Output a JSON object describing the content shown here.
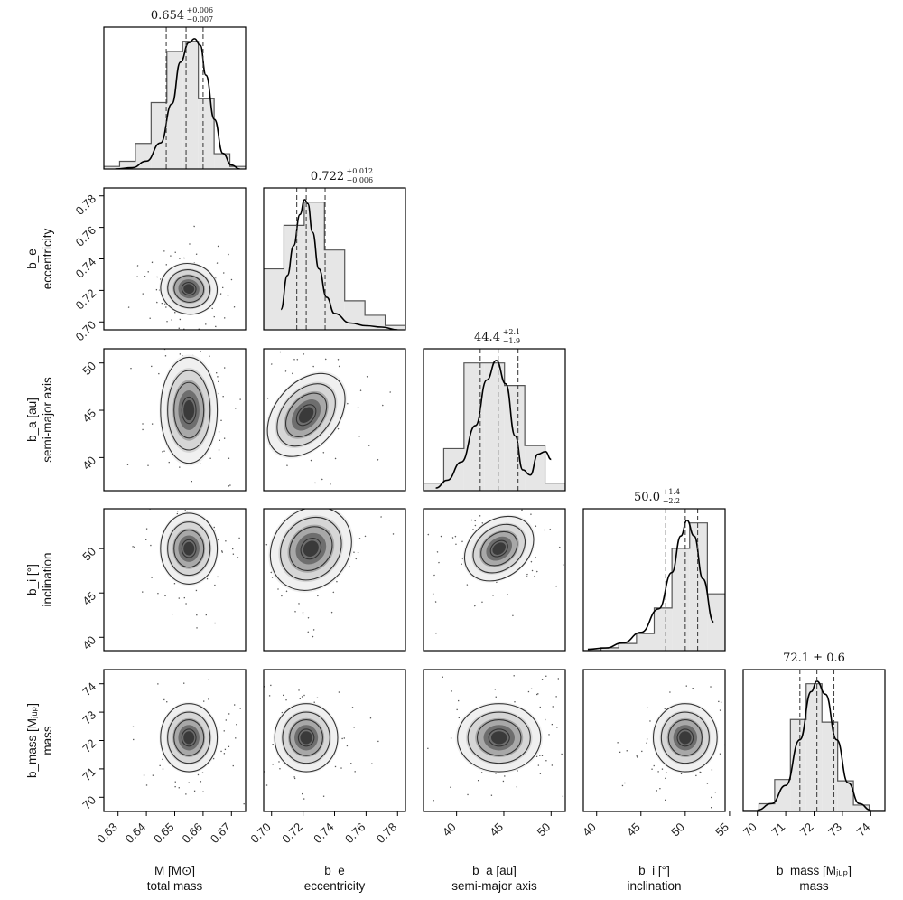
{
  "chart_data": {
    "type": "corner",
    "params": [
      {
        "key": "M",
        "label": "M [M⊙]",
        "sublabel": "total mass",
        "range": [
          0.625,
          0.675
        ],
        "ticks": [
          0.63,
          0.64,
          0.65,
          0.66,
          0.67
        ],
        "tick_labels": [
          "0.63",
          "0.64",
          "0.65",
          "0.66",
          "0.67"
        ],
        "median": 0.654,
        "err_plus": 0.006,
        "err_minus": 0.007,
        "title_main": "0.654",
        "title_plus": "+0.006",
        "title_minus": "−0.007",
        "hist": [
          0.02,
          0.06,
          0.2,
          0.52,
          0.92,
          1.0,
          0.55,
          0.12,
          0.02
        ],
        "kde": [
          [
            0.629,
            0.0
          ],
          [
            0.635,
            0.01
          ],
          [
            0.64,
            0.06
          ],
          [
            0.645,
            0.2
          ],
          [
            0.649,
            0.5
          ],
          [
            0.652,
            0.82
          ],
          [
            0.655,
            0.97
          ],
          [
            0.657,
            1.0
          ],
          [
            0.659,
            0.95
          ],
          [
            0.661,
            0.72
          ],
          [
            0.664,
            0.38
          ],
          [
            0.667,
            0.12
          ],
          [
            0.67,
            0.03
          ],
          [
            0.673,
            0.0
          ]
        ]
      },
      {
        "key": "b_e",
        "label": "b_e",
        "sublabel": "eccentricity",
        "range": [
          0.695,
          0.785
        ],
        "ticks": [
          0.7,
          0.72,
          0.74,
          0.76,
          0.78
        ],
        "tick_labels": [
          "0.70",
          "0.72",
          "0.74",
          "0.76",
          "0.78"
        ],
        "median": 0.722,
        "err_plus": 0.012,
        "err_minus": 0.006,
        "title_main": "0.722",
        "title_plus": "+0.012",
        "title_minus": "−0.006",
        "hist": [
          0.42,
          0.72,
          0.88,
          0.55,
          0.2,
          0.1,
          0.03
        ],
        "kde": [
          [
            0.706,
            0.15
          ],
          [
            0.71,
            0.4
          ],
          [
            0.714,
            0.62
          ],
          [
            0.718,
            0.85
          ],
          [
            0.721,
            0.96
          ],
          [
            0.723,
            0.93
          ],
          [
            0.726,
            0.72
          ],
          [
            0.73,
            0.45
          ],
          [
            0.735,
            0.24
          ],
          [
            0.74,
            0.12
          ],
          [
            0.75,
            0.05
          ],
          [
            0.76,
            0.03
          ],
          [
            0.77,
            0.02
          ],
          [
            0.78,
            0.0
          ]
        ]
      },
      {
        "key": "b_a",
        "label": "b_a [au]",
        "sublabel": "semi-major axis",
        "range": [
          36.5,
          51.5
        ],
        "ticks": [
          40,
          45,
          50
        ],
        "tick_labels": [
          "40",
          "45",
          "50"
        ],
        "median": 44.4,
        "err_plus": 2.1,
        "err_minus": 1.9,
        "title_main": "44.4",
        "title_plus": "+2.1",
        "title_minus": "−1.9",
        "hist": [
          0.05,
          0.28,
          0.85,
          0.85,
          0.7,
          0.3,
          0.05
        ],
        "kde": [
          [
            37.8,
            0.02
          ],
          [
            39.0,
            0.08
          ],
          [
            40.5,
            0.22
          ],
          [
            42.0,
            0.5
          ],
          [
            43.2,
            0.85
          ],
          [
            44.2,
            1.0
          ],
          [
            45.2,
            0.82
          ],
          [
            46.2,
            0.42
          ],
          [
            47.0,
            0.16
          ],
          [
            47.8,
            0.12
          ],
          [
            48.6,
            0.28
          ],
          [
            49.4,
            0.3
          ],
          [
            50.0,
            0.24
          ]
        ]
      },
      {
        "key": "b_i",
        "label": "b_i [°]",
        "sublabel": "inclination",
        "range": [
          38.5,
          54.5
        ],
        "ticks": [
          40,
          45,
          50,
          55
        ],
        "tick_labels": [
          "40",
          "45",
          "50",
          "55"
        ],
        "median": 50.0,
        "err_plus": 1.4,
        "err_minus": 2.2,
        "title_main": "50.0",
        "title_plus": "+1.4",
        "title_minus": "−2.2",
        "hist": [
          0.0,
          0.02,
          0.05,
          0.12,
          0.3,
          0.72,
          0.9,
          0.4
        ],
        "kde": [
          [
            39.0,
            0.01
          ],
          [
            41.0,
            0.02
          ],
          [
            43.0,
            0.06
          ],
          [
            45.0,
            0.14
          ],
          [
            47.0,
            0.32
          ],
          [
            48.5,
            0.6
          ],
          [
            49.5,
            0.88
          ],
          [
            50.2,
            1.0
          ],
          [
            51.0,
            0.88
          ],
          [
            52.0,
            0.55
          ],
          [
            53.2,
            0.22
          ]
        ]
      },
      {
        "key": "b_mass",
        "label": "b_mass [Mⱼᵤₚ]",
        "sublabel": "mass",
        "range": [
          69.5,
          74.5
        ],
        "ticks": [
          70,
          71,
          72,
          73,
          74
        ],
        "tick_labels": [
          "70",
          "71",
          "72",
          "73",
          "74"
        ],
        "median": 72.1,
        "err_plus": 0.6,
        "err_minus": 0.6,
        "title_main": "72.1 ± 0.6",
        "title_plus": "",
        "title_minus": "",
        "hist": [
          0.01,
          0.06,
          0.25,
          0.72,
          1.0,
          0.7,
          0.24,
          0.05,
          0.01
        ],
        "kde": [
          [
            70.0,
            0.01
          ],
          [
            70.5,
            0.06
          ],
          [
            71.0,
            0.2
          ],
          [
            71.5,
            0.55
          ],
          [
            71.9,
            0.92
          ],
          [
            72.1,
            1.0
          ],
          [
            72.4,
            0.9
          ],
          [
            72.8,
            0.55
          ],
          [
            73.2,
            0.22
          ],
          [
            73.6,
            0.06
          ],
          [
            74.0,
            0.01
          ]
        ]
      }
    ],
    "contours_2d": [
      {
        "row": 1,
        "col": 0,
        "center": [
          0.655,
          0.721
        ],
        "spread": [
          0.005,
          0.008
        ]
      },
      {
        "row": 2,
        "col": 0,
        "center": [
          0.655,
          45.0
        ],
        "spread": [
          0.005,
          2.8
        ]
      },
      {
        "row": 2,
        "col": 1,
        "center": [
          0.722,
          44.5
        ],
        "spread": [
          0.01,
          2.5
        ]
      },
      {
        "row": 3,
        "col": 0,
        "center": [
          0.655,
          50.0
        ],
        "spread": [
          0.005,
          2.0
        ]
      },
      {
        "row": 3,
        "col": 1,
        "center": [
          0.725,
          50.0
        ],
        "spread": [
          0.012,
          2.5
        ]
      },
      {
        "row": 3,
        "col": 2,
        "center": [
          44.5,
          50.0
        ],
        "spread": [
          2.0,
          1.6
        ]
      },
      {
        "row": 4,
        "col": 0,
        "center": [
          0.655,
          72.1
        ],
        "spread": [
          0.005,
          0.6
        ]
      },
      {
        "row": 4,
        "col": 1,
        "center": [
          0.722,
          72.1
        ],
        "spread": [
          0.01,
          0.6
        ]
      },
      {
        "row": 4,
        "col": 2,
        "center": [
          44.5,
          72.1
        ],
        "spread": [
          2.2,
          0.6
        ]
      },
      {
        "row": 4,
        "col": 3,
        "center": [
          50.0,
          72.1
        ],
        "spread": [
          1.8,
          0.6
        ]
      }
    ]
  }
}
